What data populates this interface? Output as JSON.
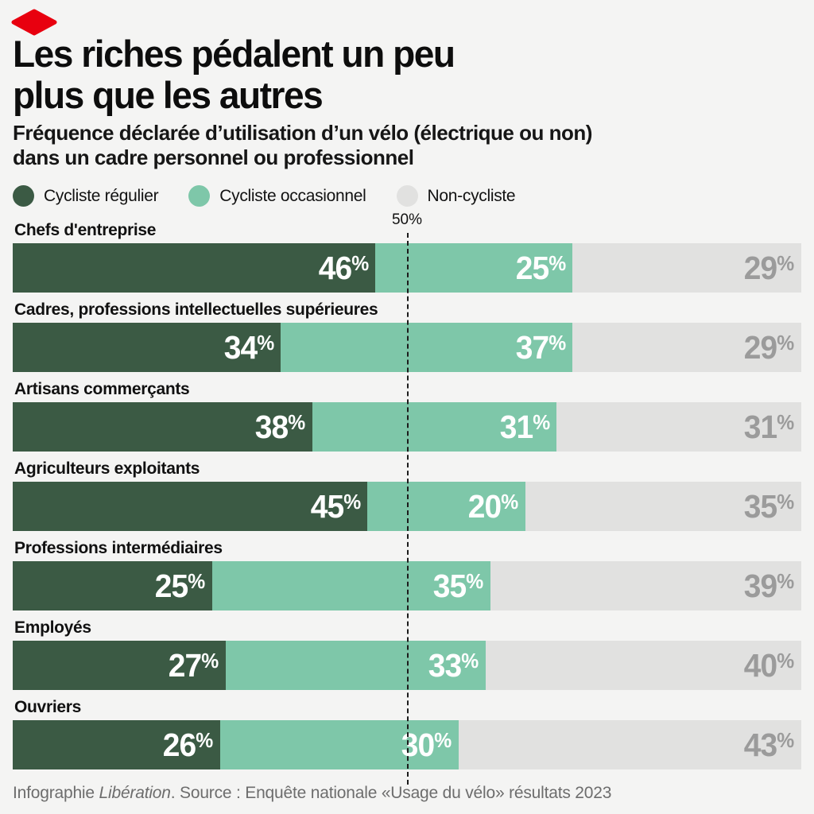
{
  "brand": {
    "logo": "liberation-red-diamond",
    "logo_color": "#e8000f"
  },
  "header": {
    "title_line1": "Les riches pédalent un peu",
    "title_line2": "plus que les autres",
    "subtitle_line1": "Fréquence déclarée d’utilisation d’un vélo (électrique ou non)",
    "subtitle_line2": "dans un cadre personnel ou professionnel"
  },
  "legend": [
    {
      "label": "Cycliste régulier",
      "color": "#3b5a44"
    },
    {
      "label": "Cycliste occasionnel",
      "color": "#7ec7a9"
    },
    {
      "label": "Non-cycliste",
      "color": "#e1e1e0"
    }
  ],
  "chart_data": {
    "type": "bar",
    "orientation": "horizontal-stacked",
    "unit": "%",
    "xlim": [
      0,
      100
    ],
    "marker": {
      "label": "50%",
      "value": 50
    },
    "categories": [
      "Chefs d'entreprise",
      "Cadres, professions intellectuelles supérieures",
      "Artisans commerçants",
      "Agriculteurs exploitants",
      "Professions intermédiaires",
      "Employés",
      "Ouvriers"
    ],
    "series": [
      {
        "name": "Cycliste régulier",
        "color": "#3b5a44",
        "label_color": "#ffffff",
        "values": [
          46,
          34,
          38,
          45,
          25,
          27,
          26
        ]
      },
      {
        "name": "Cycliste occasionnel",
        "color": "#7ec7a9",
        "label_color": "#ffffff",
        "values": [
          25,
          37,
          31,
          20,
          35,
          33,
          30
        ]
      },
      {
        "name": "Non-cycliste",
        "color": "#e1e1e0",
        "label_color": "#9b9b9b",
        "values": [
          29,
          29,
          31,
          35,
          39,
          40,
          43
        ]
      }
    ],
    "title": "Les riches pédalent un peu plus que les autres"
  },
  "footer": {
    "prefix": "Infographie ",
    "italic": "Libération",
    "suffix": ". Source : Enquête nationale «Usage du vélo» résultats 2023"
  },
  "colors": {
    "background": "#f4f4f3",
    "grid_line": "#1c1c1c"
  }
}
